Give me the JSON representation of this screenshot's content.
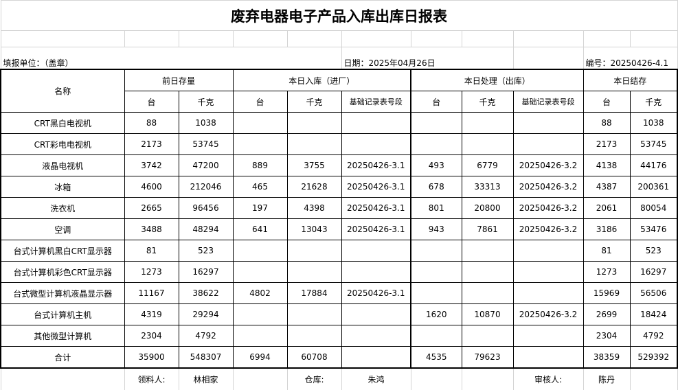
{
  "title": "废弃电器电子产品入库出库日报表",
  "info": {
    "unit": "填报单位：（盖章）",
    "date": "日期：2025年04月26日",
    "number": "编号：20250426-4.1"
  },
  "headers": {
    "name": "名称",
    "prev": "前日存量",
    "in": "本日入库（进厂）",
    "out": "本日处理（出库）",
    "stock": "本日结存",
    "unit_count": "台",
    "unit_kg": "千克",
    "record": "基础记录表号段"
  },
  "rows": [
    [
      "CRT黑白电视机",
      "88",
      "1038",
      "",
      "",
      "",
      "",
      "",
      "",
      "88",
      "1038"
    ],
    [
      "CRT彩电电视机",
      "2173",
      "53745",
      "",
      "",
      "",
      "",
      "",
      "",
      "2173",
      "53745"
    ],
    [
      "液晶电视机",
      "3742",
      "47200",
      "889",
      "3755",
      "20250426-3.1",
      "493",
      "6779",
      "20250426-3.2",
      "4138",
      "44176"
    ],
    [
      "冰箱",
      "4600",
      "212046",
      "465",
      "21628",
      "20250426-3.1",
      "678",
      "33313",
      "20250426-3.2",
      "4387",
      "200361"
    ],
    [
      "洗衣机",
      "2665",
      "96456",
      "197",
      "4398",
      "20250426-3.1",
      "801",
      "20800",
      "20250426-3.2",
      "2061",
      "80054"
    ],
    [
      "空调",
      "3488",
      "48294",
      "641",
      "13043",
      "20250426-3.1",
      "943",
      "7861",
      "20250426-3.2",
      "3186",
      "53476"
    ],
    [
      "台式计算机黑白CRT显示器",
      "81",
      "523",
      "",
      "",
      "",
      "",
      "",
      "",
      "81",
      "523"
    ],
    [
      "台式计算机彩色CRT显示器",
      "1273",
      "16297",
      "",
      "",
      "",
      "",
      "",
      "",
      "1273",
      "16297"
    ],
    [
      "台式微型计算机液晶显示器",
      "11167",
      "38622",
      "4802",
      "17884",
      "20250426-3.1",
      "",
      "",
      "",
      "15969",
      "56506"
    ],
    [
      "台式计算机主机",
      "4319",
      "29294",
      "",
      "",
      "",
      "1620",
      "10870",
      "20250426-3.2",
      "2699",
      "18424"
    ],
    [
      "其他微型计算机",
      "2304",
      "4792",
      "",
      "",
      "",
      "",
      "",
      "",
      "2304",
      "4792"
    ],
    [
      "合计",
      "35900",
      "548307",
      "6994",
      "60708",
      "",
      "4535",
      "79623",
      "",
      "38359",
      "529392"
    ]
  ],
  "footer": {
    "receiver_label": "领料人:",
    "receiver": "林相家",
    "warehouse_label": "仓库:",
    "warehouse": "朱鸿",
    "reviewer_label": "审核人:",
    "reviewer": "陈丹"
  }
}
